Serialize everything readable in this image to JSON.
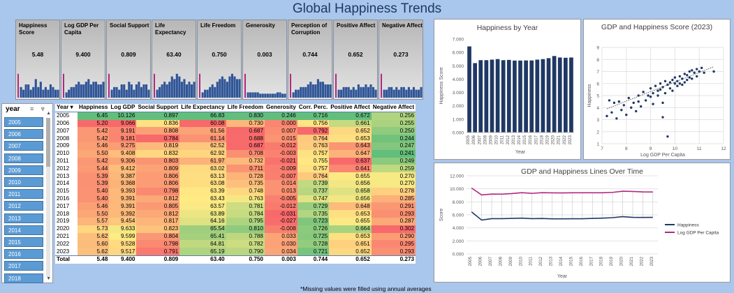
{
  "title": "Global Happiness Trends",
  "kpis": [
    {
      "label": "Happiness Score",
      "value": "5.48",
      "bars": [
        0.9,
        0.4,
        0.3,
        0.5,
        0.5,
        0.3,
        0.4,
        0.7,
        0.4,
        0.6,
        0.3,
        0.4,
        0.3,
        0.5,
        0.4,
        0.3,
        0.3
      ]
    },
    {
      "label": "Log GDP Per Capita",
      "value": "9.400",
      "bars": [
        0.9,
        0.2,
        0.3,
        0.4,
        0.4,
        0.5,
        0.6,
        0.5,
        0.5,
        0.6,
        0.7,
        0.5,
        0.6,
        0.6,
        0.5,
        0.5,
        0.6
      ]
    },
    {
      "label": "Social Support",
      "value": "0.809",
      "bars": [
        0.9,
        0.3,
        0.4,
        0.4,
        0.3,
        0.5,
        0.5,
        0.3,
        0.6,
        0.5,
        0.3,
        0.5,
        0.6,
        0.4,
        0.5,
        0.5,
        0.3
      ]
    },
    {
      "label": "Life Expectancy",
      "value": "63.40",
      "bars": [
        0.9,
        0.3,
        0.4,
        0.5,
        0.6,
        0.5,
        0.6,
        0.8,
        0.7,
        0.9,
        0.8,
        0.6,
        0.7,
        0.5,
        0.6,
        0.5,
        0.6
      ]
    },
    {
      "label": "Life Freedom",
      "value": "0.750",
      "bars": [
        0.9,
        0.2,
        0.3,
        0.3,
        0.4,
        0.5,
        0.4,
        0.6,
        0.7,
        0.8,
        0.7,
        0.6,
        0.8,
        0.9,
        0.8,
        0.7,
        0.7
      ]
    },
    {
      "label": "Generosity",
      "value": "0.003",
      "bars": [
        0.9,
        0.2,
        0.2,
        0.2,
        0.2,
        0.2,
        0.15,
        0.15,
        0.15,
        0.15,
        0.15,
        0.15,
        0.15,
        0.2,
        0.2,
        0.15,
        0.15
      ]
    },
    {
      "label": "Perception of Corruption",
      "value": "0.744",
      "bars": [
        0.9,
        0.2,
        0.3,
        0.3,
        0.4,
        0.4,
        0.4,
        0.5,
        0.6,
        0.5,
        0.5,
        0.7,
        0.6,
        0.6,
        0.5,
        0.5,
        0.5
      ]
    },
    {
      "label": "Positive Affect",
      "value": "0.652",
      "bars": [
        0.9,
        0.3,
        0.3,
        0.4,
        0.4,
        0.4,
        0.3,
        0.4,
        0.3,
        0.5,
        0.4,
        0.4,
        0.5,
        0.4,
        0.5,
        0.4,
        0.3
      ]
    },
    {
      "label": "Negative Affect",
      "value": "0.273",
      "bars": [
        0.9,
        0.3,
        0.3,
        0.4,
        0.4,
        0.3,
        0.4,
        0.3,
        0.4,
        0.4,
        0.3,
        0.4,
        0.3,
        0.4,
        0.3,
        0.3,
        0.4
      ]
    }
  ],
  "slicer": {
    "title": "year",
    "items": [
      "2005",
      "2006",
      "2007",
      "2008",
      "2009",
      "2010",
      "2011",
      "2012",
      "2013",
      "2014",
      "2015",
      "2016",
      "2017",
      "2018"
    ]
  },
  "table": {
    "headers": [
      "Year",
      "Happiness",
      "Log GDP",
      "Social Support",
      "Life Expectancy",
      "Life Freedom",
      "Generosity",
      "Corr. Perc.",
      "Positive Affect",
      "Negative Affect"
    ],
    "rows": [
      [
        "2005",
        "6.45",
        "10.126",
        "0.897",
        "66.83",
        "0.830",
        "0.246",
        "0.716",
        "0.672",
        "0.256"
      ],
      [
        "2006",
        "5.20",
        "9.066",
        "0.836",
        "60.08",
        "0.730",
        "0.000",
        "0.756",
        "0.661",
        "0.255"
      ],
      [
        "2007",
        "5.42",
        "9.191",
        "0.808",
        "61.56",
        "0.687",
        "0.007",
        "0.792",
        "0.652",
        "0.250"
      ],
      [
        "2008",
        "5.42",
        "9.181",
        "0.784",
        "61.14",
        "0.688",
        "0.015",
        "0.764",
        "0.653",
        "0.244"
      ],
      [
        "2009",
        "5.46",
        "9.275",
        "0.819",
        "62.52",
        "0.687",
        "-0.012",
        "0.763",
        "0.643",
        "0.247"
      ],
      [
        "2010",
        "5.50",
        "9.408",
        "0.832",
        "62.92",
        "0.708",
        "-0.003",
        "0.757",
        "0.647",
        "0.241"
      ],
      [
        "2011",
        "5.42",
        "9.306",
        "0.803",
        "61.97",
        "0.732",
        "-0.021",
        "0.755",
        "0.637",
        "0.249"
      ],
      [
        "2012",
        "5.44",
        "9.412",
        "0.809",
        "63.02",
        "0.711",
        "-0.009",
        "0.757",
        "0.641",
        "0.259"
      ],
      [
        "2013",
        "5.39",
        "9.387",
        "0.806",
        "63.13",
        "0.728",
        "-0.007",
        "0.764",
        "0.655",
        "0.270"
      ],
      [
        "2014",
        "5.39",
        "9.368",
        "0.806",
        "63.08",
        "0.735",
        "0.014",
        "0.739",
        "0.656",
        "0.270"
      ],
      [
        "2015",
        "5.40",
        "9.393",
        "0.798",
        "63.39",
        "0.748",
        "0.013",
        "0.737",
        "0.658",
        "0.278"
      ],
      [
        "2016",
        "5.40",
        "9.391",
        "0.812",
        "63.43",
        "0.763",
        "-0.005",
        "0.747",
        "0.656",
        "0.285"
      ],
      [
        "2017",
        "5.46",
        "9.391",
        "0.805",
        "63.57",
        "0.781",
        "-0.012",
        "0.729",
        "0.648",
        "0.291"
      ],
      [
        "2018",
        "5.50",
        "9.392",
        "0.812",
        "63.89",
        "0.784",
        "-0.031",
        "0.735",
        "0.653",
        "0.293"
      ],
      [
        "2019",
        "5.57",
        "9.454",
        "0.817",
        "64.16",
        "0.795",
        "-0.027",
        "0.723",
        "0.655",
        "0.287"
      ],
      [
        "2020",
        "5.73",
        "9.633",
        "0.823",
        "65.54",
        "0.810",
        "-0.008",
        "0.726",
        "0.664",
        "0.302"
      ],
      [
        "2021",
        "5.62",
        "9.599",
        "0.804",
        "65.41",
        "0.788",
        "0.033",
        "0.725",
        "0.653",
        "0.290"
      ],
      [
        "2022",
        "5.60",
        "9.528",
        "0.798",
        "64.81",
        "0.782",
        "0.030",
        "0.728",
        "0.651",
        "0.295"
      ],
      [
        "2023",
        "5.62",
        "9.517",
        "0.791",
        "65.19",
        "0.790",
        "0.034",
        "0.721",
        "0.652",
        "0.293"
      ]
    ],
    "total": [
      "Total",
      "5.48",
      "9.400",
      "0.809",
      "63.40",
      "0.750",
      "0.003",
      "0.744",
      "0.652",
      "0.273"
    ]
  },
  "note": "*Missing values were filled using annual averages",
  "charts": {
    "bar": {
      "title": "Happiness by Year",
      "xlabel": "Year",
      "ylabel": "Happiness Score",
      "yticks": [
        "0.000",
        "1.000",
        "2.000",
        "3.000",
        "4.000",
        "5.000",
        "6.000",
        "7.000"
      ]
    },
    "scatter": {
      "title": "GDP and Happiness Score (2023)",
      "xlabel": "Log GDP Per Capita",
      "ylabel": "Happiness",
      "xticks": [
        "7",
        "8",
        "9",
        "10",
        "11",
        "12"
      ],
      "yticks": [
        "1",
        "2",
        "3",
        "4",
        "5",
        "6",
        "7",
        "8",
        "9"
      ]
    },
    "line": {
      "title": "GDP and Happiness Lines Over Time",
      "xlabel": "Year",
      "ylabel": "Score",
      "yticks": [
        "0.000",
        "2.000",
        "4.000",
        "6.000",
        "8.000",
        "10.000",
        "12.000"
      ],
      "legend": [
        "Happiness",
        "Log GDP Per Capita"
      ]
    }
  },
  "chart_data": [
    {
      "type": "bar",
      "title": "Happiness by Year",
      "xlabel": "Year",
      "ylabel": "Happiness Score",
      "ylim": [
        0,
        7
      ],
      "categories": [
        "2005",
        "2006",
        "2007",
        "2008",
        "2009",
        "2010",
        "2011",
        "2012",
        "2013",
        "2014",
        "2015",
        "2016",
        "2017",
        "2018",
        "2019",
        "2020",
        "2021",
        "2022",
        "2023"
      ],
      "values": [
        6.45,
        5.2,
        5.42,
        5.42,
        5.46,
        5.5,
        5.42,
        5.44,
        5.39,
        5.39,
        5.4,
        5.4,
        5.46,
        5.5,
        5.57,
        5.73,
        5.62,
        5.6,
        5.62
      ]
    },
    {
      "type": "scatter",
      "title": "GDP and Happiness Score (2023)",
      "xlabel": "Log GDP Per Capita",
      "ylabel": "Happiness",
      "xlim": [
        7,
        12
      ],
      "ylim": [
        1,
        9
      ],
      "points": [
        [
          7.2,
          3.3
        ],
        [
          7.3,
          4.6
        ],
        [
          7.4,
          3.6
        ],
        [
          7.5,
          4.4
        ],
        [
          7.6,
          3.1
        ],
        [
          7.7,
          4.5
        ],
        [
          7.8,
          3.8
        ],
        [
          7.9,
          4.2
        ],
        [
          8.0,
          3.4
        ],
        [
          8.1,
          4.8
        ],
        [
          8.2,
          4.0
        ],
        [
          8.3,
          4.4
        ],
        [
          8.4,
          3.7
        ],
        [
          8.5,
          5.0
        ],
        [
          8.5,
          4.5
        ],
        [
          8.6,
          4.1
        ],
        [
          8.7,
          5.3
        ],
        [
          8.8,
          4.6
        ],
        [
          8.9,
          5.0
        ],
        [
          9.0,
          4.9
        ],
        [
          9.0,
          5.6
        ],
        [
          9.1,
          4.3
        ],
        [
          9.1,
          5.2
        ],
        [
          9.2,
          5.8
        ],
        [
          9.3,
          5.4
        ],
        [
          9.3,
          5.0
        ],
        [
          9.4,
          6.0
        ],
        [
          9.4,
          5.5
        ],
        [
          9.5,
          5.7
        ],
        [
          9.5,
          4.4
        ],
        [
          9.5,
          3.2
        ],
        [
          9.6,
          6.2
        ],
        [
          9.6,
          5.2
        ],
        [
          9.7,
          5.9
        ],
        [
          9.7,
          1.6
        ],
        [
          9.8,
          6.1
        ],
        [
          9.8,
          5.6
        ],
        [
          9.9,
          6.3
        ],
        [
          9.9,
          5.4
        ],
        [
          10.0,
          6.0
        ],
        [
          10.0,
          6.5
        ],
        [
          10.1,
          5.8
        ],
        [
          10.1,
          6.2
        ],
        [
          10.2,
          6.6
        ],
        [
          10.2,
          6.0
        ],
        [
          10.3,
          6.4
        ],
        [
          10.3,
          5.9
        ],
        [
          10.4,
          6.8
        ],
        [
          10.4,
          6.1
        ],
        [
          10.5,
          6.7
        ],
        [
          10.5,
          6.3
        ],
        [
          10.6,
          7.0
        ],
        [
          10.6,
          6.5
        ],
        [
          10.7,
          7.1
        ],
        [
          10.7,
          6.4
        ],
        [
          10.8,
          6.9
        ],
        [
          10.9,
          7.2
        ],
        [
          10.9,
          6.6
        ],
        [
          11.0,
          7.0
        ],
        [
          11.1,
          7.3
        ],
        [
          11.2,
          6.9
        ],
        [
          11.6,
          7.0
        ]
      ]
    },
    {
      "type": "line",
      "title": "GDP and Happiness Lines Over Time",
      "xlabel": "Year",
      "ylabel": "Score",
      "ylim": [
        0,
        12
      ],
      "categories": [
        "2005",
        "2006",
        "2007",
        "2008",
        "2009",
        "2010",
        "2011",
        "2012",
        "2013",
        "2014",
        "2015",
        "2016",
        "2017",
        "2018",
        "2019",
        "2020",
        "2021",
        "2022",
        "2023"
      ],
      "series": [
        {
          "name": "Happiness",
          "values": [
            6.45,
            5.2,
            5.42,
            5.42,
            5.46,
            5.5,
            5.42,
            5.44,
            5.39,
            5.39,
            5.4,
            5.4,
            5.46,
            5.5,
            5.57,
            5.73,
            5.62,
            5.6,
            5.62
          ]
        },
        {
          "name": "Log GDP Per Capita",
          "values": [
            10.126,
            9.066,
            9.191,
            9.181,
            9.275,
            9.408,
            9.306,
            9.412,
            9.387,
            9.368,
            9.393,
            9.391,
            9.391,
            9.392,
            9.454,
            9.633,
            9.599,
            9.528,
            9.517
          ]
        }
      ]
    }
  ],
  "colors": {
    "bar": "#1f3864",
    "happiness_line": "#1f3864",
    "gdp_line": "#b0287e",
    "kpi_accent": "#b0287e",
    "kpi_bar": "#2f5597",
    "slicer": "#5b9bd5"
  }
}
